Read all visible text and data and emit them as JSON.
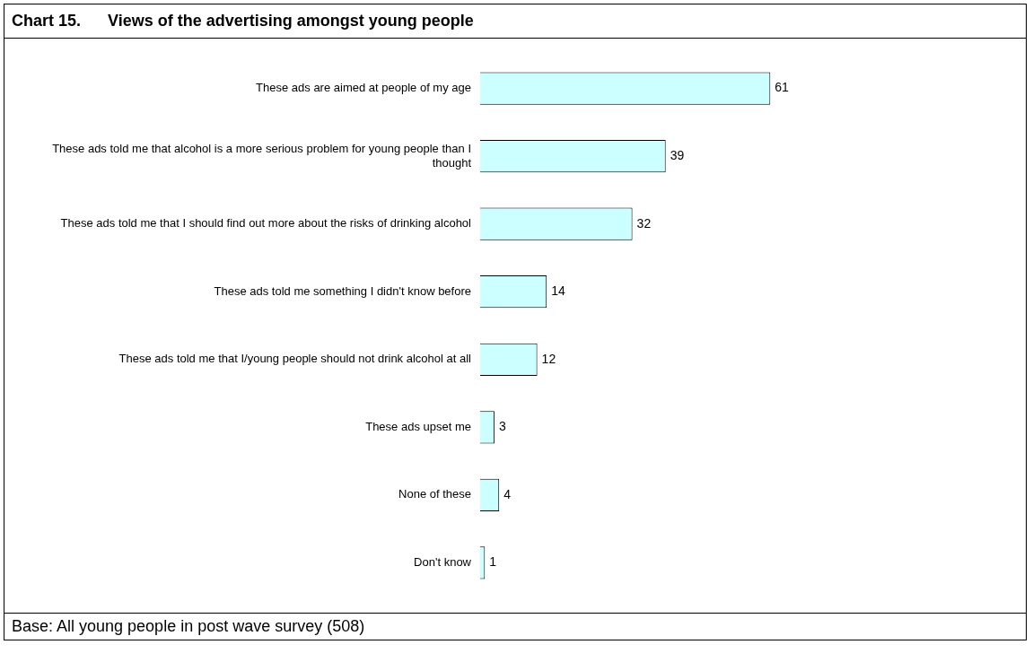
{
  "chart_data": {
    "type": "bar",
    "orientation": "horizontal",
    "title": "Chart 15.      Views of the advertising amongst young people",
    "categories": [
      "These ads are aimed at people of my age",
      "These ads told me that alcohol is a more serious problem for young people than I thought",
      "These ads told me that I should find out more about the risks of drinking alcohol",
      "These ads told me something I didn't know before",
      "These ads told me that I/young people should not drink alcohol at all",
      "These ads upset me",
      "None of these",
      "Don't know"
    ],
    "values": [
      61,
      39,
      32,
      14,
      12,
      3,
      4,
      1
    ],
    "color": "#ccffff",
    "data_labels": true,
    "legend": false,
    "annotations": [
      "Base: All young people in post wave survey (508)"
    ]
  }
}
